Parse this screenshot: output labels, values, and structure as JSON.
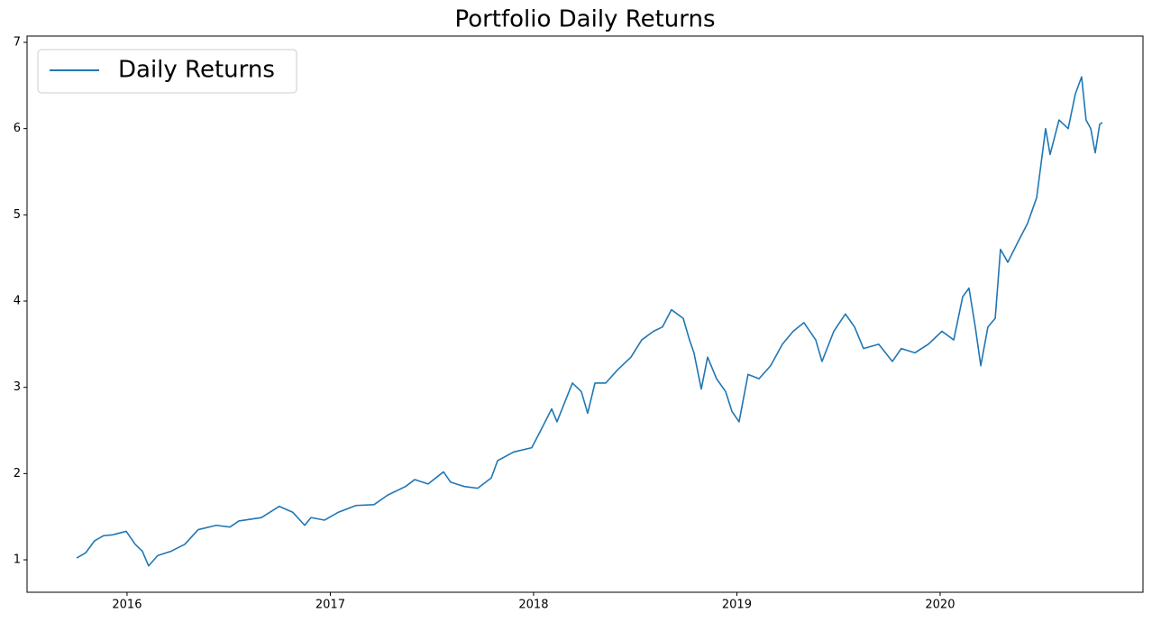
{
  "chart_data": {
    "type": "line",
    "title": "Portfolio Daily Returns",
    "x": [
      2015.752,
      2015.796,
      2015.84,
      2015.885,
      2015.929,
      2015.996,
      2016.04,
      2016.075,
      2016.106,
      2016.151,
      2016.217,
      2016.284,
      2016.35,
      2016.439,
      2016.506,
      2016.55,
      2016.661,
      2016.749,
      2016.816,
      2016.874,
      2016.905,
      2016.971,
      2017.038,
      2017.126,
      2017.215,
      2017.282,
      2017.37,
      2017.415,
      2017.481,
      2017.557,
      2017.592,
      2017.659,
      2017.725,
      2017.792,
      2017.823,
      2017.902,
      2017.991,
      2018.035,
      2018.089,
      2018.115,
      2018.191,
      2018.235,
      2018.266,
      2018.302,
      2018.355,
      2018.412,
      2018.479,
      2018.532,
      2018.59,
      2018.634,
      2018.678,
      2018.736,
      2018.767,
      2018.789,
      2018.825,
      2018.856,
      2018.9,
      2018.945,
      2018.976,
      2019.011,
      2019.055,
      2019.109,
      2019.166,
      2019.224,
      2019.277,
      2019.33,
      2019.388,
      2019.419,
      2019.477,
      2019.534,
      2019.579,
      2019.623,
      2019.698,
      2019.765,
      2019.809,
      2019.876,
      2019.942,
      2020.009,
      2020.067,
      2020.111,
      2020.142,
      2020.173,
      2020.2,
      2020.235,
      2020.271,
      2020.297,
      2020.333,
      2020.386,
      2020.43,
      2020.475,
      2020.519,
      2020.541,
      2020.585,
      2020.63,
      2020.665,
      2020.696,
      2020.718,
      2020.741,
      2020.763,
      2020.785,
      2020.798
    ],
    "series": [
      {
        "name": "Daily Returns",
        "color": "#1f77b4",
        "values": [
          1.02,
          1.08,
          1.22,
          1.28,
          1.29,
          1.33,
          1.18,
          1.1,
          0.93,
          1.05,
          1.1,
          1.18,
          1.35,
          1.4,
          1.38,
          1.45,
          1.49,
          1.62,
          1.55,
          1.4,
          1.49,
          1.46,
          1.55,
          1.63,
          1.64,
          1.75,
          1.85,
          1.93,
          1.88,
          2.02,
          1.9,
          1.85,
          1.83,
          1.95,
          2.15,
          2.25,
          2.3,
          2.5,
          2.75,
          2.6,
          3.05,
          2.95,
          2.7,
          3.05,
          3.05,
          3.2,
          3.35,
          3.55,
          3.65,
          3.7,
          3.9,
          3.8,
          3.55,
          3.4,
          2.98,
          3.35,
          3.1,
          2.95,
          2.72,
          2.6,
          3.15,
          3.1,
          3.25,
          3.5,
          3.65,
          3.75,
          3.55,
          3.3,
          3.65,
          3.85,
          3.7,
          3.45,
          3.5,
          3.3,
          3.45,
          3.4,
          3.5,
          3.65,
          3.55,
          4.05,
          4.15,
          3.7,
          3.25,
          3.7,
          3.8,
          4.6,
          4.45,
          4.7,
          4.9,
          5.2,
          6.0,
          5.7,
          6.1,
          6.0,
          6.4,
          6.6,
          6.1,
          6.0,
          5.72,
          6.05,
          6.07
        ]
      }
    ],
    "xlim": [
      2015.508,
      2020.998
    ],
    "xticks": [
      2016,
      2017,
      2018,
      2019,
      2020
    ],
    "ylim": [
      0.624,
      7.073
    ],
    "yticks": [
      1,
      2,
      3,
      4,
      5,
      6,
      7
    ],
    "legend": "upper left"
  }
}
